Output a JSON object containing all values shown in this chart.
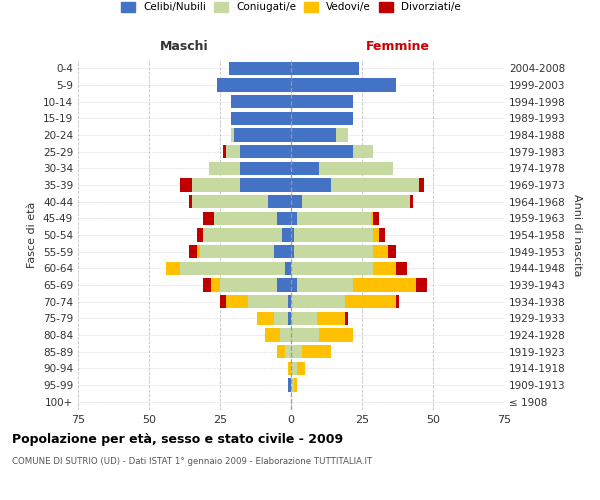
{
  "age_groups": [
    "100+",
    "95-99",
    "90-94",
    "85-89",
    "80-84",
    "75-79",
    "70-74",
    "65-69",
    "60-64",
    "55-59",
    "50-54",
    "45-49",
    "40-44",
    "35-39",
    "30-34",
    "25-29",
    "20-24",
    "15-19",
    "10-14",
    "5-9",
    "0-4"
  ],
  "birth_years": [
    "≤ 1908",
    "1909-1913",
    "1914-1918",
    "1919-1923",
    "1924-1928",
    "1929-1933",
    "1934-1938",
    "1939-1943",
    "1944-1948",
    "1949-1953",
    "1954-1958",
    "1959-1963",
    "1964-1968",
    "1969-1973",
    "1974-1978",
    "1979-1983",
    "1984-1988",
    "1989-1993",
    "1994-1998",
    "1999-2003",
    "2004-2008"
  ],
  "male_celibi": [
    0,
    1,
    0,
    0,
    0,
    1,
    1,
    5,
    2,
    6,
    3,
    5,
    8,
    18,
    18,
    18,
    20,
    21,
    21,
    26,
    22
  ],
  "male_coniugati": [
    0,
    0,
    0,
    2,
    4,
    5,
    14,
    20,
    37,
    26,
    28,
    22,
    27,
    17,
    11,
    5,
    1,
    0,
    0,
    0,
    0
  ],
  "male_vedovi": [
    0,
    0,
    1,
    3,
    5,
    6,
    8,
    3,
    5,
    1,
    0,
    0,
    0,
    0,
    0,
    0,
    0,
    0,
    0,
    0,
    0
  ],
  "male_divorziati": [
    0,
    0,
    0,
    0,
    0,
    0,
    2,
    3,
    0,
    3,
    2,
    4,
    1,
    4,
    0,
    1,
    0,
    0,
    0,
    0,
    0
  ],
  "female_nubili": [
    0,
    0,
    0,
    0,
    0,
    0,
    0,
    2,
    0,
    1,
    1,
    2,
    4,
    14,
    10,
    22,
    16,
    22,
    22,
    37,
    24
  ],
  "female_coniugate": [
    0,
    1,
    2,
    4,
    10,
    9,
    19,
    20,
    29,
    28,
    28,
    26,
    38,
    31,
    26,
    7,
    4,
    0,
    0,
    0,
    0
  ],
  "female_vedove": [
    0,
    1,
    3,
    10,
    12,
    10,
    18,
    22,
    8,
    5,
    2,
    1,
    0,
    0,
    0,
    0,
    0,
    0,
    0,
    0,
    0
  ],
  "female_divorziate": [
    0,
    0,
    0,
    0,
    0,
    1,
    1,
    4,
    4,
    3,
    2,
    2,
    1,
    2,
    0,
    0,
    0,
    0,
    0,
    0,
    0
  ],
  "color_celibi": "#4472c4",
  "color_coniugati": "#c5d9a0",
  "color_vedovi": "#ffc000",
  "color_divorziati": "#c00000",
  "legend_labels": [
    "Celibi/Nubili",
    "Coniugati/e",
    "Vedovi/e",
    "Divorziati/e"
  ],
  "title": "Popolazione per età, sesso e stato civile - 2009",
  "subtitle": "COMUNE DI SUTRIO (UD) - Dati ISTAT 1° gennaio 2009 - Elaborazione TUTTITALIA.IT",
  "maschi_label": "Maschi",
  "femmine_label": "Femmine",
  "ylabel_left": "Fasce di età",
  "ylabel_right": "Anni di nascita",
  "xlim": 75,
  "bg_color": "#ffffff",
  "grid_color": "#bbbbbb"
}
